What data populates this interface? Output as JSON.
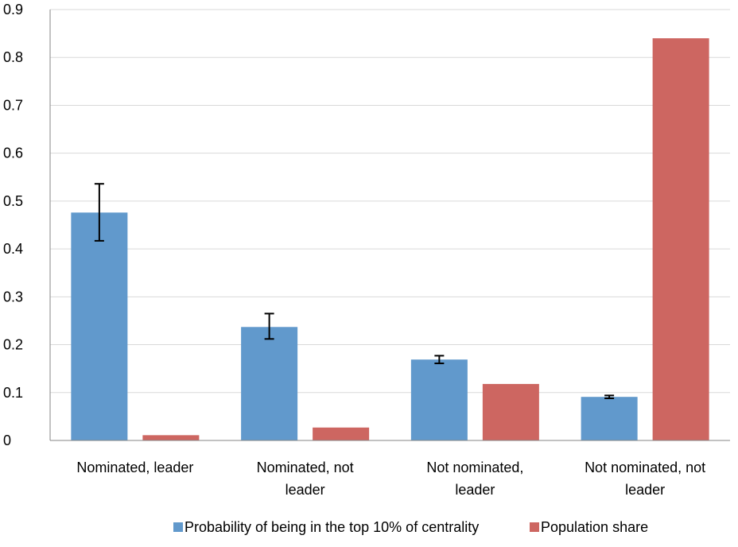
{
  "chart_data": {
    "type": "bar",
    "categories": [
      [
        "Nominated, leader"
      ],
      [
        "Nominated, not",
        "leader"
      ],
      [
        "Not nominated,",
        "leader"
      ],
      [
        "Not nominated, not",
        "leader"
      ]
    ],
    "series": [
      {
        "name": "Probability of being in the top 10% of centrality",
        "color": "#6199cc",
        "values": [
          0.476,
          0.237,
          0.169,
          0.091
        ],
        "error_low": [
          0.417,
          0.212,
          0.161,
          0.088
        ],
        "error_high": [
          0.536,
          0.265,
          0.177,
          0.094
        ]
      },
      {
        "name": "Population share",
        "color": "#cd6661",
        "values": [
          0.011,
          0.027,
          0.118,
          0.84
        ]
      }
    ],
    "ylim": [
      0,
      0.9
    ],
    "yticks": [
      "0",
      "0.1",
      "0.2",
      "0.3",
      "0.4",
      "0.5",
      "0.6",
      "0.7",
      "0.8",
      "0.9"
    ],
    "grid": true,
    "legend_position": "bottom",
    "title": "",
    "xlabel": "",
    "ylabel": ""
  }
}
